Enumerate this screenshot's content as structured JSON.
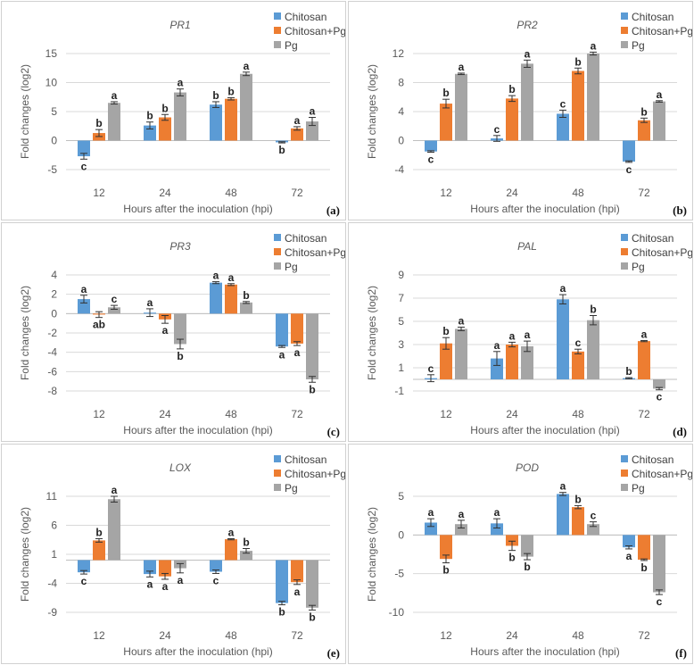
{
  "colors": {
    "Chitosan": "#5B9BD5",
    "Chitosan+Pg": "#ED7D31",
    "Pg": "#A5A5A5"
  },
  "chart_data": [
    {
      "type": "bar",
      "panel": "(a)",
      "title": "PR1",
      "xlabel": "Hours after the inoculation (hpi)",
      "ylabel": "Fold changes (log2)",
      "categories": [
        "12",
        "24",
        "48",
        "72"
      ],
      "ylim": [
        -5,
        15
      ],
      "yticks": [
        -5,
        0,
        5,
        10,
        15
      ],
      "grid": true,
      "legend": "top-right",
      "series": [
        {
          "name": "Chitosan",
          "values": [
            -2.7,
            2.6,
            6.2,
            -0.3
          ],
          "errors": [
            0.5,
            0.6,
            0.5,
            0.1
          ],
          "letters": [
            "c",
            "b",
            "b",
            "b"
          ]
        },
        {
          "name": "Chitosan+Pg",
          "values": [
            1.3,
            4.0,
            7.2,
            2.1
          ],
          "errors": [
            0.6,
            0.5,
            0.2,
            0.3
          ],
          "letters": [
            "b",
            "b",
            "b",
            "a"
          ]
        },
        {
          "name": "Pg",
          "values": [
            6.5,
            8.3,
            11.5,
            3.3
          ],
          "errors": [
            0.2,
            0.6,
            0.3,
            0.7
          ],
          "letters": [
            "a",
            "a",
            "a",
            "a"
          ]
        }
      ]
    },
    {
      "type": "bar",
      "panel": "(b)",
      "title": "PR2",
      "xlabel": "Hours after the inoculation (hpi)",
      "ylabel": "Fold changes (log2)",
      "categories": [
        "12",
        "24",
        "48",
        "72"
      ],
      "ylim": [
        -4,
        12
      ],
      "yticks": [
        -4,
        0,
        4,
        8,
        12
      ],
      "grid": true,
      "legend": "top-right",
      "series": [
        {
          "name": "Chitosan",
          "values": [
            -1.5,
            0.3,
            3.7,
            -2.9
          ],
          "errors": [
            0.1,
            0.4,
            0.5,
            0.1
          ],
          "letters": [
            "c",
            "c",
            "c",
            "c"
          ]
        },
        {
          "name": "Chitosan+Pg",
          "values": [
            5.1,
            5.8,
            9.6,
            2.8
          ],
          "errors": [
            0.6,
            0.4,
            0.4,
            0.3
          ],
          "letters": [
            "b",
            "b",
            "b",
            "b"
          ]
        },
        {
          "name": "Pg",
          "values": [
            9.2,
            10.6,
            12.0,
            5.4
          ],
          "errors": [
            0.1,
            0.5,
            0.2,
            0.1
          ],
          "letters": [
            "a",
            "a",
            "a",
            "a"
          ]
        }
      ]
    },
    {
      "type": "bar",
      "panel": "(c)",
      "title": "PR3",
      "xlabel": "Hours after the inoculation (hpi)",
      "ylabel": "Fold changes (log2)",
      "categories": [
        "12",
        "24",
        "48",
        "72"
      ],
      "ylim": [
        -8,
        4
      ],
      "yticks": [
        -8,
        -6,
        -4,
        -2,
        0,
        2,
        4
      ],
      "grid": true,
      "legend": "top-right",
      "series": [
        {
          "name": "Chitosan",
          "values": [
            1.5,
            0.1,
            3.2,
            -3.4
          ],
          "errors": [
            0.4,
            0.4,
            0.1,
            0.1
          ],
          "letters": [
            "a",
            "a",
            "a",
            "a"
          ]
        },
        {
          "name": "Chitosan+Pg",
          "values": [
            -0.1,
            -0.6,
            3.0,
            -3.1
          ],
          "errors": [
            0.3,
            0.4,
            0.1,
            0.2
          ],
          "letters": [
            "ab",
            "a",
            "a",
            "a"
          ]
        },
        {
          "name": "Pg",
          "values": [
            0.65,
            -3.15,
            1.15,
            -6.8
          ],
          "errors": [
            0.2,
            0.5,
            0.1,
            0.3
          ],
          "letters": [
            "c",
            "b",
            "b",
            "b"
          ]
        }
      ]
    },
    {
      "type": "bar",
      "panel": "(d)",
      "title": "PAL",
      "xlabel": "Hours after the inoculation (hpi)",
      "ylabel": "Fold changes (log2)",
      "categories": [
        "12",
        "24",
        "48",
        "72"
      ],
      "ylim": [
        -1,
        9
      ],
      "yticks": [
        -1,
        1,
        3,
        5,
        7,
        9
      ],
      "grid": true,
      "legend": "top-right",
      "series": [
        {
          "name": "Chitosan",
          "values": [
            0.1,
            1.8,
            6.9,
            0.1
          ],
          "errors": [
            0.3,
            0.6,
            0.4,
            0.05
          ],
          "letters": [
            "c",
            "a",
            "a",
            "b"
          ]
        },
        {
          "name": "Chitosan+Pg",
          "values": [
            3.1,
            3.0,
            2.4,
            3.3
          ],
          "errors": [
            0.5,
            0.2,
            0.2,
            0.05
          ],
          "letters": [
            "b",
            "a",
            "c",
            "a"
          ]
        },
        {
          "name": "Pg",
          "values": [
            4.35,
            2.85,
            5.1,
            -0.8
          ],
          "errors": [
            0.15,
            0.45,
            0.4,
            0.1
          ],
          "letters": [
            "a",
            "a",
            "b",
            "c"
          ]
        }
      ]
    },
    {
      "type": "bar",
      "panel": "(e)",
      "title": "LOX",
      "xlabel": "Hours after the inoculation (hpi)",
      "ylabel": "Fold changes (log2)",
      "categories": [
        "12",
        "24",
        "48",
        "72"
      ],
      "ylim": [
        -9,
        11
      ],
      "yticks": [
        -9,
        -4,
        1,
        6,
        11
      ],
      "grid": true,
      "legend": "top-right",
      "series": [
        {
          "name": "Chitosan",
          "values": [
            -2.1,
            -2.4,
            -2.0,
            -7.4
          ],
          "errors": [
            0.3,
            0.5,
            0.3,
            0.3
          ],
          "letters": [
            "c",
            "a",
            "c",
            "b"
          ]
        },
        {
          "name": "Chitosan+Pg",
          "values": [
            3.4,
            -2.8,
            3.6,
            -3.8
          ],
          "errors": [
            0.3,
            0.5,
            0.1,
            0.4
          ],
          "letters": [
            "b",
            "a",
            "a",
            "a"
          ]
        },
        {
          "name": "Pg",
          "values": [
            10.5,
            -1.4,
            1.6,
            -8.2
          ],
          "errors": [
            0.5,
            0.8,
            0.4,
            0.4
          ],
          "letters": [
            "a",
            "a",
            "b",
            "b"
          ]
        }
      ]
    },
    {
      "type": "bar",
      "panel": "(f)",
      "title": "POD",
      "xlabel": "Hours after the inoculation (hpi)",
      "ylabel": "Fold changes (log2)",
      "categories": [
        "12",
        "24",
        "48",
        "72"
      ],
      "ylim": [
        -10,
        5
      ],
      "yticks": [
        -10,
        -5,
        0,
        5
      ],
      "grid": true,
      "legend": "top-right",
      "series": [
        {
          "name": "Chitosan",
          "values": [
            1.6,
            1.5,
            5.3,
            -1.6
          ],
          "errors": [
            0.5,
            0.6,
            0.2,
            0.2
          ],
          "letters": [
            "a",
            "a",
            "a",
            "a"
          ]
        },
        {
          "name": "Chitosan+Pg",
          "values": [
            -3.1,
            -1.4,
            3.6,
            -3.2
          ],
          "errors": [
            0.5,
            0.6,
            0.2,
            0.1
          ],
          "letters": [
            "b",
            "b",
            "b",
            "b"
          ]
        },
        {
          "name": "Pg",
          "values": [
            1.4,
            -2.8,
            1.4,
            -7.4
          ],
          "errors": [
            0.5,
            0.4,
            0.3,
            0.3
          ],
          "letters": [
            "a",
            "b",
            "c",
            "c"
          ]
        }
      ]
    }
  ]
}
